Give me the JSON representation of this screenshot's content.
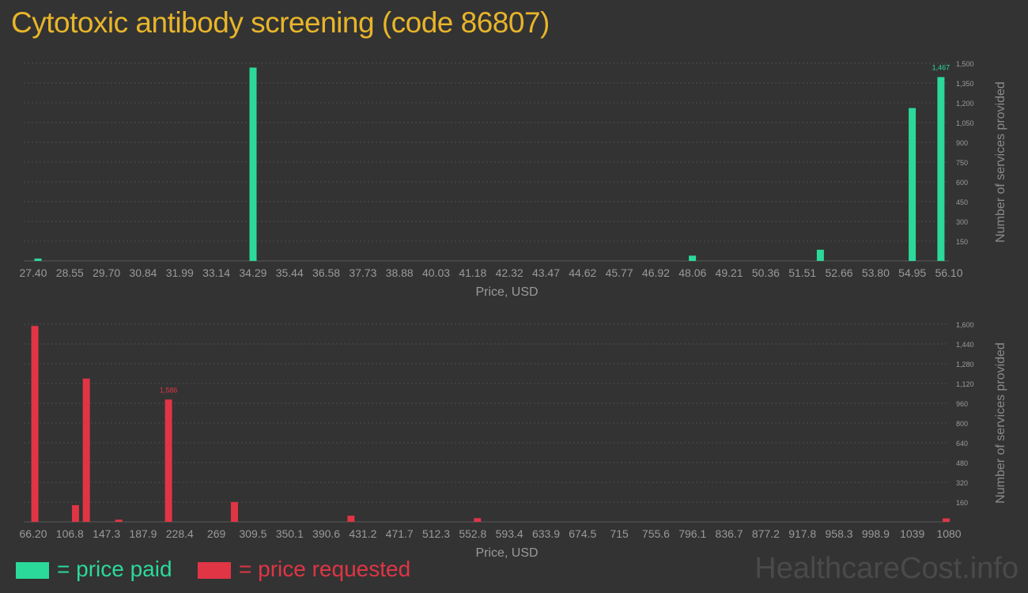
{
  "title": "Cytotoxic antibody screening (code 86807)",
  "legend": {
    "paid_label": "= price paid",
    "requested_label": "= price requested"
  },
  "watermark": "HealthcareCost.info",
  "colors": {
    "paid": "#2bd99a",
    "requested": "#e03545",
    "title": "#e8b52a",
    "background": "#333333"
  },
  "chart_data": [
    {
      "type": "bar",
      "series_name": "price paid",
      "xlabel": "Price, USD",
      "ylabel": "Number of services provided",
      "x_ticks": [
        "27.40",
        "28.55",
        "29.70",
        "30.84",
        "31.99",
        "33.14",
        "34.29",
        "35.44",
        "36.58",
        "37.73",
        "38.88",
        "40.03",
        "41.18",
        "42.32",
        "43.47",
        "44.62",
        "45.77",
        "46.92",
        "48.06",
        "49.21",
        "50.36",
        "51.51",
        "52.66",
        "53.80",
        "54.95",
        "56.10"
      ],
      "y_ticks": [
        "150",
        "300",
        "450",
        "600",
        "750",
        "900",
        "1,050",
        "1,200",
        "1,350",
        "1,500"
      ],
      "ylim": [
        0,
        1500
      ],
      "xlim": [
        27.4,
        56.1
      ],
      "grid": true,
      "max_label": "1,467",
      "bars": [
        {
          "x": 27.55,
          "y": 18
        },
        {
          "x": 34.29,
          "y": 1467
        },
        {
          "x": 48.06,
          "y": 40
        },
        {
          "x": 52.07,
          "y": 85
        },
        {
          "x": 54.95,
          "y": 1160
        },
        {
          "x": 55.85,
          "y": 1395
        }
      ]
    },
    {
      "type": "bar",
      "series_name": "price requested",
      "xlabel": "Price, USD",
      "ylabel": "Number of services provided",
      "x_ticks": [
        "66.20",
        "106.8",
        "147.3",
        "187.9",
        "228.4",
        "269",
        "309.5",
        "350.1",
        "390.6",
        "431.2",
        "471.7",
        "512.3",
        "552.8",
        "593.4",
        "633.9",
        "674.5",
        "715",
        "755.6",
        "796.1",
        "836.7",
        "877.2",
        "917.8",
        "958.3",
        "998.9",
        "1039",
        "1080"
      ],
      "y_ticks": [
        "160",
        "320",
        "480",
        "640",
        "800",
        "960",
        "1,120",
        "1,280",
        "1,440",
        "1,600"
      ],
      "ylim": [
        0,
        1600
      ],
      "xlim": [
        66.2,
        1080
      ],
      "grid": true,
      "max_label": "1,586",
      "bars": [
        {
          "x": 68,
          "y": 1586
        },
        {
          "x": 113,
          "y": 135
        },
        {
          "x": 125,
          "y": 1160
        },
        {
          "x": 161,
          "y": 18
        },
        {
          "x": 216,
          "y": 990
        },
        {
          "x": 289,
          "y": 160
        },
        {
          "x": 418,
          "y": 50
        },
        {
          "x": 558,
          "y": 30
        },
        {
          "x": 1077,
          "y": 28
        }
      ]
    }
  ]
}
